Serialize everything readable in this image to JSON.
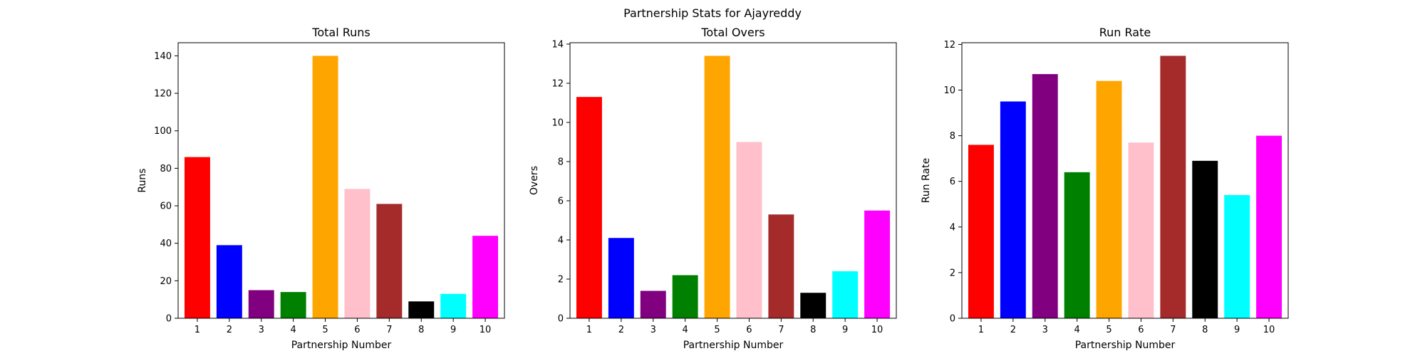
{
  "figure": {
    "suptitle": "Partnership Stats for Ajayreddy"
  },
  "chart_data": [
    {
      "type": "bar",
      "title": "Total Runs",
      "xlabel": "Partnership Number",
      "ylabel": "Runs",
      "categories": [
        "1",
        "2",
        "3",
        "4",
        "5",
        "6",
        "7",
        "8",
        "9",
        "10"
      ],
      "values": [
        86,
        39,
        15,
        14,
        140,
        69,
        61,
        9,
        13,
        44
      ],
      "colors": [
        "#ff0000",
        "#0000ff",
        "#800080",
        "#008000",
        "#ffa500",
        "#ffc0cb",
        "#a52a2a",
        "#000000",
        "#00ffff",
        "#ff00ff"
      ],
      "ylim": [
        0,
        147
      ],
      "yticks": [
        0,
        20,
        40,
        60,
        80,
        100,
        120,
        140
      ],
      "grid": false
    },
    {
      "type": "bar",
      "title": "Total Overs",
      "xlabel": "Partnership Number",
      "ylabel": "Overs",
      "categories": [
        "1",
        "2",
        "3",
        "4",
        "5",
        "6",
        "7",
        "8",
        "9",
        "10"
      ],
      "values": [
        11.3,
        4.1,
        1.4,
        2.2,
        13.4,
        9.0,
        5.3,
        1.3,
        2.4,
        5.5
      ],
      "colors": [
        "#ff0000",
        "#0000ff",
        "#800080",
        "#008000",
        "#ffa500",
        "#ffc0cb",
        "#a52a2a",
        "#000000",
        "#00ffff",
        "#ff00ff"
      ],
      "ylim": [
        0,
        14.07
      ],
      "yticks": [
        0,
        2,
        4,
        6,
        8,
        10,
        12,
        14
      ],
      "grid": false
    },
    {
      "type": "bar",
      "title": "Run Rate",
      "xlabel": "Partnership Number",
      "ylabel": "Run Rate",
      "categories": [
        "1",
        "2",
        "3",
        "4",
        "5",
        "6",
        "7",
        "8",
        "9",
        "10"
      ],
      "values": [
        7.6,
        9.5,
        10.7,
        6.4,
        10.4,
        7.7,
        11.5,
        6.9,
        5.4,
        8.0
      ],
      "colors": [
        "#ff0000",
        "#0000ff",
        "#800080",
        "#008000",
        "#ffa500",
        "#ffc0cb",
        "#a52a2a",
        "#000000",
        "#00ffff",
        "#ff00ff"
      ],
      "ylim": [
        0,
        12.075
      ],
      "yticks": [
        0,
        2,
        4,
        6,
        8,
        10,
        12
      ],
      "grid": false
    }
  ]
}
